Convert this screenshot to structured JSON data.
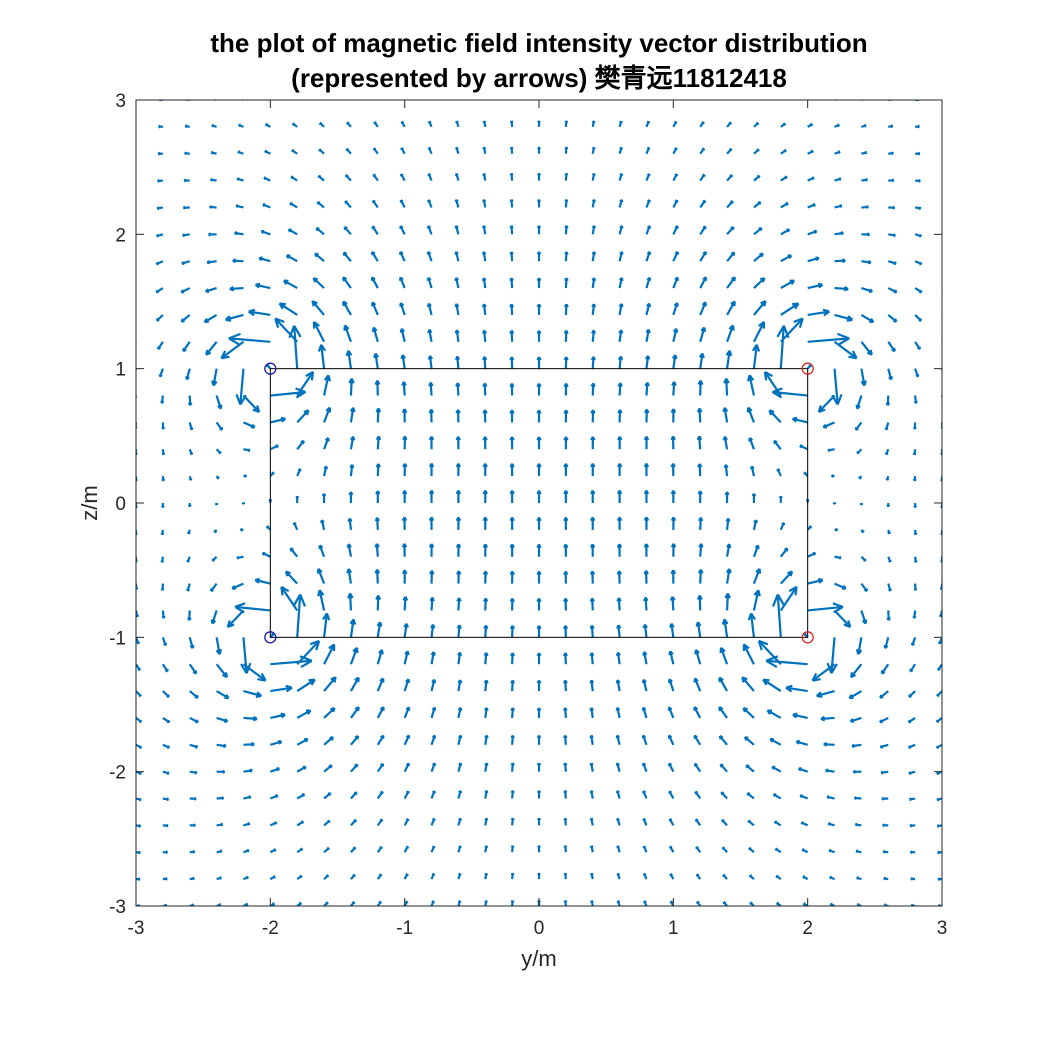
{
  "chart_data": {
    "type": "quiver",
    "title_lines": [
      "the plot of magnetic field intensity vector distribution",
      "(represented by arrows) 樊青远11812418"
    ],
    "xlabel": "y/m",
    "ylabel": "z/m",
    "xlim": [
      -3,
      3
    ],
    "ylim": [
      -3,
      3
    ],
    "xticks": [
      -3,
      -2,
      -1,
      0,
      1,
      2,
      3
    ],
    "yticks": [
      -3,
      -2,
      -1,
      0,
      1,
      2,
      3
    ],
    "xtick_labels": [
      "-3",
      "-2",
      "-1",
      "0",
      "1",
      "2",
      "3"
    ],
    "ytick_labels": [
      "-3",
      "-2",
      "-1",
      "0",
      "1",
      "2",
      "3"
    ],
    "grid": false,
    "arrow_grid": {
      "start": -3,
      "step": 0.2,
      "count": 31
    },
    "rectangle": {
      "y": [
        -2,
        2
      ],
      "z": [
        -1,
        1
      ]
    },
    "wire_markers": [
      {
        "y": -2,
        "z": 1,
        "color": "#1a1aa8"
      },
      {
        "y": -2,
        "z": -1,
        "color": "#1a1aa8"
      },
      {
        "y": 2,
        "z": 1,
        "color": "#d62728"
      },
      {
        "y": 2,
        "z": -1,
        "color": "#d62728"
      }
    ],
    "colors": {
      "arrows": "#0072bd",
      "rectangle": "#000000",
      "axes": "#262626"
    }
  }
}
